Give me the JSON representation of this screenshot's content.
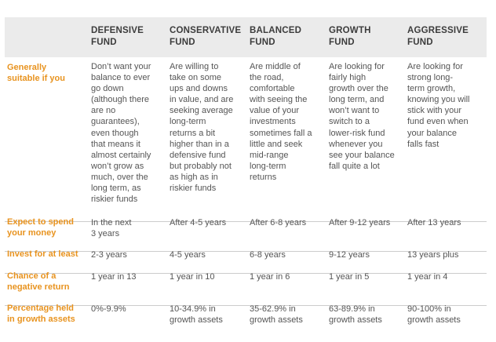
{
  "headers": [
    "DEFENSIVE\nFUND",
    "CONSERVATIVE\nFUND",
    "BALANCED\nFUND",
    "GROWTH\nFUND",
    "AGGRESSIVE\nFUND"
  ],
  "rows": [
    {
      "label": "Generally\nsuitable if you",
      "cells": [
        "Don’t want your\nbalance to ever\ngo down\n(although there\nare no\nguarantees),\neven though\nthat means it\nalmost certainly\nwon’t grow as\nmuch, over the\nlong term, as\nriskier funds",
        "Are willing to\ntake on some\nups and downs\nin value, and are\nseeking average\nlong-term\nreturns a bit\nhigher than in a\ndefensive fund\nbut probably not\nas high as in\nriskier funds",
        "Are middle of\nthe road,\ncomfortable\nwith seeing the\nvalue of your\ninvestments\nsometimes fall a\nlittle and seek\nmid-range\nlong-term\nreturns",
        "Are looking for\nfairly high\ngrowth over the\nlong term, and\nwon’t want to\nswitch to a\nlower-risk fund\nwhenever you\nsee your balance\nfall quite a lot",
        "Are looking for\nstrong long-\nterm growth,\nknowing you will\nstick with your\nfund even when\nyour balance\nfalls fast"
      ]
    },
    {
      "label": "Expect to spend\nyour money",
      "cells": [
        "In the next\n3 years",
        "After 4-5 years",
        "After 6-8 years",
        "After 9-12 years",
        "After 13 years"
      ]
    },
    {
      "label": "Invest for at least",
      "cells": [
        "2-3 years",
        "4-5 years",
        "6-8 years",
        "9-12 years",
        "13 years plus"
      ]
    },
    {
      "label": "Chance of a\nnegative return",
      "cells": [
        "1 year in 13",
        "1 year in 10",
        "1 year in 6",
        "1 year in 5",
        "1 year in 4"
      ]
    },
    {
      "label": "Percentage held\nin growth assets",
      "cells": [
        "0%-9.9%",
        "10-34.9% in\ngrowth assets",
        "35-62.9% in\ngrowth assets",
        "63-89.9% in\ngrowth assets",
        "90-100% in\ngrowth assets"
      ]
    }
  ]
}
